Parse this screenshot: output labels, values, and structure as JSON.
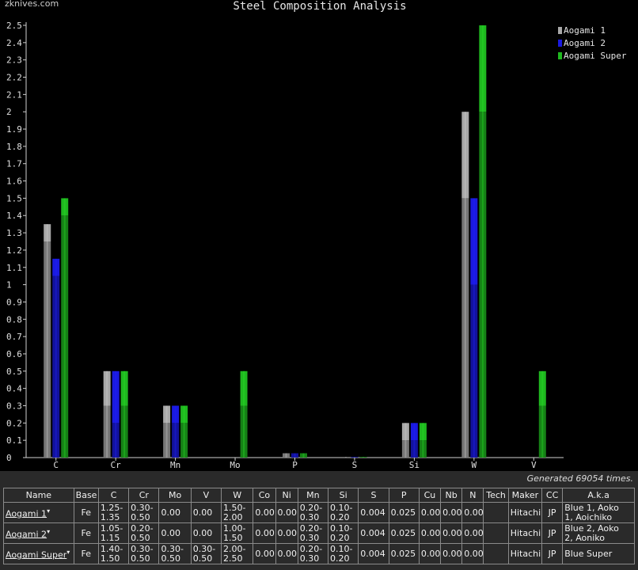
{
  "watermark": "zknives.com",
  "generated_text": "Generated 69054 times.",
  "chart_data": {
    "type": "bar",
    "title": "Steel Composition Analysis",
    "xlabel": "",
    "ylabel": "",
    "categories": [
      "C",
      "Cr",
      "Mn",
      "Mo",
      "P",
      "S",
      "Si",
      "W",
      "V"
    ],
    "ylim": [
      0,
      2.5
    ],
    "yticks": [
      "0",
      "0.1",
      "0.2",
      "0.3",
      "0.4",
      "0.5",
      "0.6",
      "0.7",
      "0.8",
      "0.9",
      "1",
      "1.1",
      "1.2",
      "1.3",
      "1.4",
      "1.5",
      "1.6",
      "1.7",
      "1.8",
      "1.9",
      "2",
      "2.1",
      "2.2",
      "2.3",
      "2.4",
      "2.5"
    ],
    "legend_position": "top-right",
    "grid": false,
    "series": [
      {
        "name": "Aogami 1",
        "color": "#a8a8a8",
        "min": [
          1.25,
          0.3,
          0.2,
          0,
          0.025,
          0.004,
          0.1,
          1.5,
          0
        ],
        "max": [
          1.35,
          0.5,
          0.3,
          0,
          0.025,
          0.004,
          0.2,
          2.0,
          0
        ]
      },
      {
        "name": "Aogami 2",
        "color": "#1a1ae0",
        "min": [
          1.05,
          0.2,
          0.2,
          0,
          0.025,
          0.004,
          0.1,
          1.0,
          0
        ],
        "max": [
          1.15,
          0.5,
          0.3,
          0,
          0.025,
          0.004,
          0.2,
          1.5,
          0
        ]
      },
      {
        "name": "Aogami Super",
        "color": "#1fb81f",
        "min": [
          1.4,
          0.3,
          0.2,
          0.3,
          0.025,
          0.004,
          0.1,
          2.0,
          0.3
        ],
        "max": [
          1.5,
          0.5,
          0.3,
          0.5,
          0.025,
          0.004,
          0.2,
          2.5,
          0.5
        ]
      }
    ]
  },
  "table": {
    "headers": [
      "Name",
      "Base",
      "C",
      "Cr",
      "Mo",
      "V",
      "W",
      "Co",
      "Ni",
      "Mn",
      "Si",
      "S",
      "P",
      "Cu",
      "Nb",
      "N",
      "Tech",
      "Maker",
      "CC",
      "A.k.a"
    ],
    "rows": [
      {
        "name": "Aogami 1",
        "base": "Fe",
        "C": "1.25-\n1.35",
        "Cr": "0.30-\n0.50",
        "Mo": "0.00",
        "V": "0.00",
        "W": "1.50-\n2.00",
        "Co": "0.00",
        "Ni": "0.00",
        "Mn": "0.20-\n0.30",
        "Si": "0.10-\n0.20",
        "S": "0.004",
        "P": "0.025",
        "Cu": "0.00",
        "Nb": "0.00",
        "N": "0.00",
        "Tech": "",
        "Maker": "Hitachi",
        "CC": "JP",
        "aka": "Blue 1, Aoko\n1, Aoichiko"
      },
      {
        "name": "Aogami 2",
        "base": "Fe",
        "C": "1.05-\n1.15",
        "Cr": "0.20-\n0.50",
        "Mo": "0.00",
        "V": "0.00",
        "W": "1.00-\n1.50",
        "Co": "0.00",
        "Ni": "0.00",
        "Mn": "0.20-\n0.30",
        "Si": "0.10-\n0.20",
        "S": "0.004",
        "P": "0.025",
        "Cu": "0.00",
        "Nb": "0.00",
        "N": "0.00",
        "Tech": "",
        "Maker": "Hitachi",
        "CC": "JP",
        "aka": "Blue 2, Aoko\n2, Aoniko"
      },
      {
        "name": "Aogami Super",
        "base": "Fe",
        "C": "1.40-\n1.50",
        "Cr": "0.30-\n0.50",
        "Mo": "0.30-\n0.50",
        "V": "0.30-\n0.50",
        "W": "2.00-\n2.50",
        "Co": "0.00",
        "Ni": "0.00",
        "Mn": "0.20-\n0.30",
        "Si": "0.10-\n0.20",
        "S": "0.004",
        "P": "0.025",
        "Cu": "0.00",
        "Nb": "0.00",
        "N": "0.00",
        "Tech": "",
        "Maker": "Hitachi",
        "CC": "JP",
        "aka": "Blue Super"
      }
    ]
  }
}
